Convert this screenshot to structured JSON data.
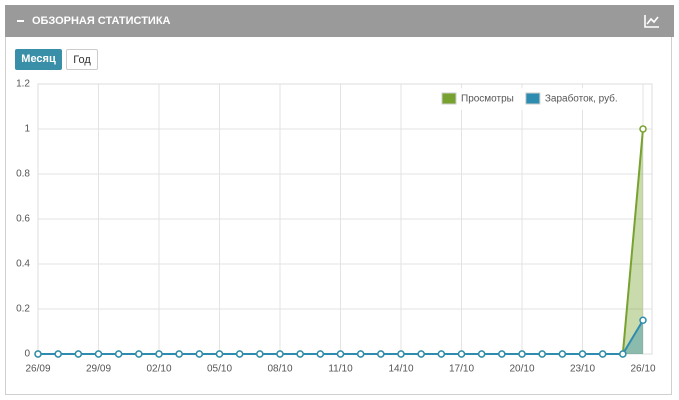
{
  "header": {
    "title": "ОБЗОРНАЯ СТАТИСТИКА"
  },
  "buttons": [
    "Месяц",
    "Год"
  ],
  "chart_data": {
    "type": "line",
    "categories": [
      "26/09",
      null,
      null,
      "29/09",
      null,
      null,
      "02/10",
      null,
      null,
      "05/10",
      null,
      null,
      "08/10",
      null,
      null,
      "11/10",
      null,
      null,
      "14/10",
      null,
      null,
      "17/10",
      null,
      null,
      "20/10",
      null,
      null,
      "23/10",
      null,
      null,
      "26/10"
    ],
    "series": [
      {
        "name": "Просмотры",
        "color": "#78a22f",
        "values": [
          0,
          0,
          0,
          0,
          0,
          0,
          0,
          0,
          0,
          0,
          0,
          0,
          0,
          0,
          0,
          0,
          0,
          0,
          0,
          0,
          0,
          0,
          0,
          0,
          0,
          0,
          0,
          0,
          0,
          0,
          1
        ]
      },
      {
        "name": "Заработок, руб.",
        "color": "#2e8cb0",
        "values": [
          0,
          0,
          0,
          0,
          0,
          0,
          0,
          0,
          0,
          0,
          0,
          0,
          0,
          0,
          0,
          0,
          0,
          0,
          0,
          0,
          0,
          0,
          0,
          0,
          0,
          0,
          0,
          0,
          0,
          0,
          0.15
        ]
      }
    ],
    "ylim": [
      0,
      1.2
    ],
    "yticks": [
      0,
      0.2,
      0.4,
      0.6,
      0.8,
      1,
      1.2
    ],
    "grid": true,
    "legend": "top-right"
  }
}
